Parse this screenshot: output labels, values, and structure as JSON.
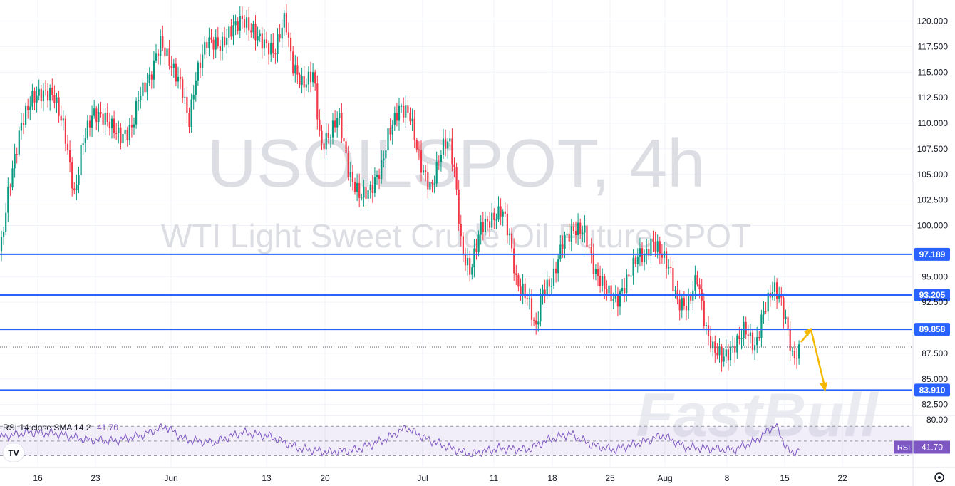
{
  "chart_data": {
    "type": "candlestick",
    "title": "USOILSPOT, 4h",
    "subtitle": "WTI Light Sweet Crude Oil Future SPOT",
    "y_ticks": [
      "120.000",
      "117.500",
      "115.000",
      "112.500",
      "110.000",
      "107.500",
      "105.000",
      "102.500",
      "100.000",
      "95.000",
      "92.500",
      "87.500",
      "85.000",
      "82.500"
    ],
    "ylim": [
      81.5,
      121.5
    ],
    "x_ticks": [
      "16",
      "23",
      "Jun",
      "13",
      "20",
      "Jul",
      "11",
      "18",
      "25",
      "Aug",
      "8",
      "15",
      "22"
    ],
    "last_price": 88.2,
    "levels": [
      {
        "label": "97.189",
        "value": 97.189
      },
      {
        "label": "93.205",
        "value": 93.205
      },
      {
        "label": "89.858",
        "value": 89.858
      },
      {
        "label": "83.910",
        "value": 83.91
      }
    ],
    "price_path": [
      [
        0,
        97.5
      ],
      [
        12,
        104
      ],
      [
        30,
        110
      ],
      [
        45,
        112
      ],
      [
        60,
        112.5
      ],
      [
        75,
        112.9
      ],
      [
        90,
        110
      ],
      [
        105,
        103
      ],
      [
        115,
        108
      ],
      [
        130,
        110.5
      ],
      [
        150,
        110
      ],
      [
        170,
        109
      ],
      [
        185,
        110
      ],
      [
        195,
        113
      ],
      [
        210,
        114
      ],
      [
        225,
        117.5
      ],
      [
        240,
        115.5
      ],
      [
        255,
        114
      ],
      [
        265,
        110.5
      ],
      [
        275,
        115
      ],
      [
        290,
        118
      ],
      [
        310,
        117
      ],
      [
        325,
        119
      ],
      [
        340,
        120.5
      ],
      [
        355,
        119.5
      ],
      [
        370,
        118
      ],
      [
        385,
        116.5
      ],
      [
        400,
        120
      ],
      [
        410,
        115.5
      ],
      [
        425,
        114
      ],
      [
        440,
        115.5
      ],
      [
        450,
        108
      ],
      [
        465,
        109
      ],
      [
        475,
        110.5
      ],
      [
        490,
        104.5
      ],
      [
        505,
        103
      ],
      [
        520,
        104
      ],
      [
        535,
        106
      ],
      [
        545,
        109
      ],
      [
        560,
        111
      ],
      [
        575,
        110.5
      ],
      [
        590,
        106
      ],
      [
        605,
        104
      ],
      [
        620,
        108
      ],
      [
        630,
        108.5
      ],
      [
        638,
        105
      ],
      [
        648,
        97
      ],
      [
        660,
        95
      ],
      [
        675,
        100
      ],
      [
        690,
        101
      ],
      [
        705,
        102
      ],
      [
        715,
        99
      ],
      [
        725,
        94
      ],
      [
        740,
        92.5
      ],
      [
        752,
        89.5
      ],
      [
        760,
        93.5
      ],
      [
        775,
        95
      ],
      [
        790,
        99
      ],
      [
        805,
        99.5
      ],
      [
        820,
        99
      ],
      [
        835,
        95
      ],
      [
        850,
        94
      ],
      [
        865,
        93
      ],
      [
        880,
        95
      ],
      [
        895,
        97
      ],
      [
        905,
        96.5
      ],
      [
        915,
        98
      ],
      [
        930,
        97
      ],
      [
        940,
        96
      ],
      [
        950,
        93
      ],
      [
        965,
        92.5
      ],
      [
        978,
        95
      ],
      [
        990,
        89.5
      ],
      [
        1000,
        87.5
      ],
      [
        1015,
        87
      ],
      [
        1030,
        88.5
      ],
      [
        1045,
        90.5
      ],
      [
        1060,
        88
      ],
      [
        1070,
        91
      ],
      [
        1085,
        93.5
      ],
      [
        1095,
        92.5
      ],
      [
        1105,
        90
      ],
      [
        1112,
        87.3
      ],
      [
        1122,
        88.2
      ]
    ],
    "forecast_path": [
      [
        1124,
        88.6
      ],
      [
        1138,
        89.8
      ],
      [
        1158,
        84.0
      ]
    ],
    "rsi": {
      "legend": "RSI 14 close SMA 14 2",
      "value": 41.7,
      "value_label": "41.70",
      "axis_label": "80.00",
      "badge": "RSI",
      "path": [
        [
          0,
          55
        ],
        [
          40,
          62
        ],
        [
          80,
          60
        ],
        [
          120,
          52
        ],
        [
          160,
          50
        ],
        [
          200,
          58
        ],
        [
          232,
          70
        ],
        [
          260,
          52
        ],
        [
          300,
          48
        ],
        [
          340,
          62
        ],
        [
          380,
          56
        ],
        [
          420,
          40
        ],
        [
          460,
          35
        ],
        [
          500,
          38
        ],
        [
          540,
          52
        ],
        [
          570,
          68
        ],
        [
          600,
          52
        ],
        [
          640,
          38
        ],
        [
          660,
          32
        ],
        [
          700,
          40
        ],
        [
          740,
          38
        ],
        [
          770,
          52
        ],
        [
          800,
          60
        ],
        [
          830,
          45
        ],
        [
          860,
          38
        ],
        [
          900,
          48
        ],
        [
          930,
          58
        ],
        [
          960,
          42
        ],
        [
          990,
          40
        ],
        [
          1030,
          38
        ],
        [
          1060,
          50
        ],
        [
          1088,
          72
        ],
        [
          1100,
          48
        ],
        [
          1110,
          32
        ],
        [
          1122,
          40
        ]
      ]
    },
    "brand": "FastBull",
    "logo": "TV"
  }
}
